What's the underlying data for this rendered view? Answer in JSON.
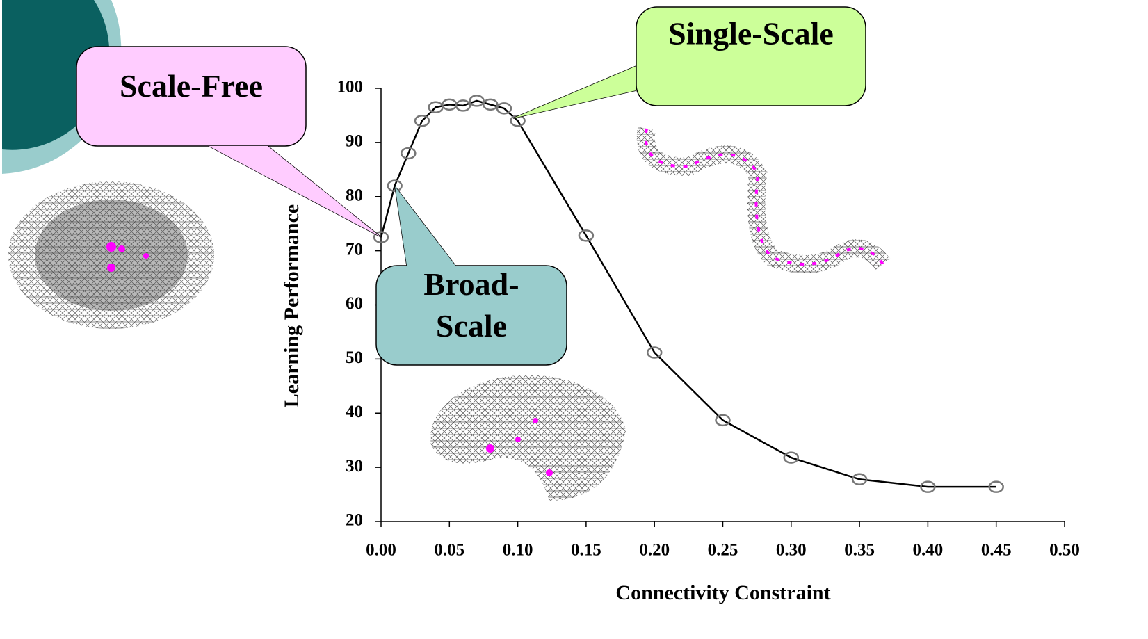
{
  "chart_data": {
    "type": "line",
    "x_label": "Connectivity Constraint",
    "y_label": "Learning Performance",
    "x": [
      0.0,
      0.01,
      0.02,
      0.03,
      0.04,
      0.05,
      0.06,
      0.07,
      0.08,
      0.09,
      0.1,
      0.15,
      0.2,
      0.25,
      0.3,
      0.35,
      0.4,
      0.45
    ],
    "series": [
      {
        "color": "#000000",
        "values": [
          72.5,
          82,
          88,
          94,
          96.5,
          97,
          96.8,
          97.7,
          97,
          96.3,
          94,
          72.8,
          51.2,
          38.7,
          31.8,
          27.8,
          26.4,
          26.4
        ]
      }
    ],
    "xlim": [
      0,
      0.5
    ],
    "xticks": [
      {
        "value": 0,
        "label": "0.00"
      },
      {
        "value": 0.05,
        "label": "0.05"
      },
      {
        "value": 0.1,
        "label": "0.10"
      },
      {
        "value": 0.15,
        "label": "0.15"
      },
      {
        "value": 0.2,
        "label": "0.20"
      },
      {
        "value": 0.25,
        "label": "0.25"
      },
      {
        "value": 0.3,
        "label": "0.30"
      },
      {
        "value": 0.35,
        "label": "0.35"
      },
      {
        "value": 0.4,
        "label": "0.40"
      },
      {
        "value": 0.45,
        "label": "0.45"
      },
      {
        "value": 0.5,
        "label": "0.50"
      }
    ],
    "ylim": [
      20,
      100
    ],
    "yticks": [
      20,
      30,
      40,
      50,
      60,
      70,
      80,
      90,
      100
    ],
    "annotations": [
      {
        "lines": [
          "Scale-Free"
        ],
        "color": "#ffccff"
      },
      {
        "lines": [
          "Single-Scale"
        ],
        "color": "#ccff99"
      },
      {
        "lines": [
          "Broad-",
          "Scale"
        ],
        "color": "#99cccc"
      }
    ]
  }
}
